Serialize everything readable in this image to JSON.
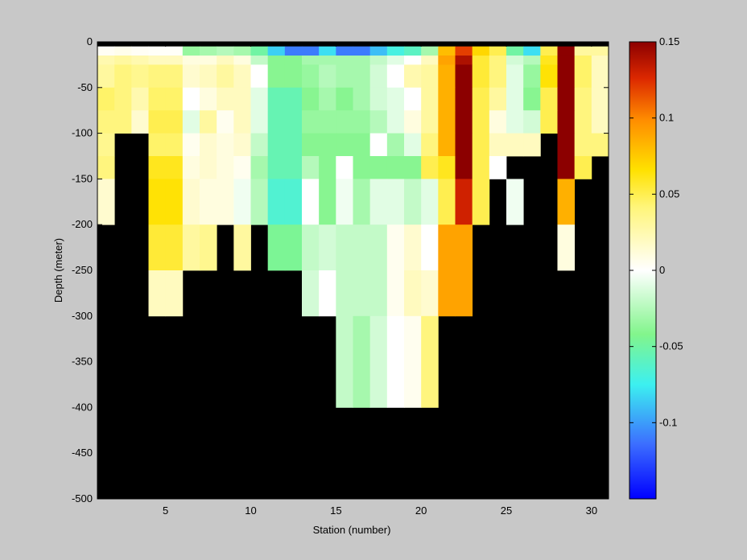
{
  "chart_data": {
    "type": "heatmap",
    "title": "",
    "xlabel": "Station (number)",
    "ylabel": "Depth (meter)",
    "xlim": [
      1,
      31
    ],
    "ylim": [
      -500,
      0
    ],
    "xticks": [
      5,
      10,
      15,
      20,
      25,
      30
    ],
    "yticks": [
      0,
      -50,
      -100,
      -150,
      -200,
      -250,
      -300,
      -350,
      -400,
      -450,
      -500
    ],
    "xtick_labels": [
      "5",
      "10",
      "15",
      "20",
      "25",
      "30"
    ],
    "ytick_labels": [
      "0",
      "-50",
      "-100",
      "-150",
      "-200",
      "-250",
      "-300",
      "-350",
      "-400",
      "-450",
      "-500"
    ],
    "colorbar": {
      "colormap": "jet-like with white at 0",
      "range": [
        -0.15,
        0.15
      ],
      "ticks": [
        0.15,
        0.1,
        0.05,
        0,
        -0.05,
        -0.1
      ],
      "tick_labels": [
        "0.15",
        "0.1",
        "0.05",
        "0",
        "-0.05",
        "-0.1"
      ]
    },
    "missing_color": "#000000",
    "station_bins": [
      1.5,
      2.5,
      3.5,
      4.5,
      5.5,
      6.5,
      7.5,
      8.5,
      9.5,
      10.5,
      11.5,
      12.5,
      13.5,
      14.5,
      15.5,
      16.5,
      17.5,
      18.5,
      19.5,
      20.5,
      21.5,
      22.5,
      23.5,
      24.5,
      25.5,
      26.5,
      27.5,
      28.5,
      29.5,
      30.5
    ],
    "depth_layers": [
      {
        "top": 0,
        "bottom": -5
      },
      {
        "top": -5,
        "bottom": -15
      },
      {
        "top": -15,
        "bottom": -25
      },
      {
        "top": -25,
        "bottom": -50
      },
      {
        "top": -50,
        "bottom": -75
      },
      {
        "top": -75,
        "bottom": -100
      },
      {
        "top": -100,
        "bottom": -125
      },
      {
        "top": -125,
        "bottom": -150
      },
      {
        "top": -150,
        "bottom": -200
      },
      {
        "top": -200,
        "bottom": -250
      },
      {
        "top": -250,
        "bottom": -300
      },
      {
        "top": -300,
        "bottom": -400
      }
    ],
    "values": [
      [
        null,
        null,
        null,
        null,
        null,
        null,
        null,
        null,
        null,
        null,
        null,
        null,
        null,
        null,
        null,
        null,
        null,
        null,
        null,
        null,
        null,
        null,
        null,
        null,
        null,
        null,
        null,
        null,
        null,
        null
      ],
      [
        0.003,
        0.006,
        0.003,
        0.002,
        0.002,
        -0.035,
        -0.03,
        -0.025,
        -0.03,
        -0.05,
        -0.085,
        -0.11,
        -0.11,
        -0.08,
        -0.11,
        -0.11,
        -0.09,
        -0.07,
        -0.06,
        -0.03,
        0.08,
        0.12,
        0.07,
        0.05,
        -0.05,
        -0.08,
        0.05,
        0.15,
        0.03,
        0.03
      ],
      [
        0.025,
        0.03,
        0.025,
        0.02,
        0.02,
        0.01,
        0.01,
        0.02,
        0.01,
        -0.02,
        -0.04,
        -0.04,
        -0.03,
        -0.03,
        -0.03,
        -0.03,
        -0.02,
        -0.01,
        0.0,
        0.02,
        0.09,
        0.14,
        0.055,
        0.04,
        -0.015,
        -0.025,
        0.06,
        0.15,
        0.045,
        0.02
      ],
      [
        0.03,
        0.04,
        0.035,
        0.04,
        0.04,
        0.015,
        0.02,
        0.03,
        0.02,
        0.0,
        -0.04,
        -0.04,
        -0.035,
        -0.025,
        -0.03,
        -0.03,
        -0.015,
        0.0,
        0.025,
        0.03,
        0.085,
        0.15,
        0.055,
        0.04,
        -0.01,
        -0.035,
        0.065,
        0.15,
        0.045,
        0.02
      ],
      [
        0.045,
        0.04,
        0.025,
        0.045,
        0.045,
        0.0,
        0.01,
        0.02,
        0.02,
        -0.01,
        -0.055,
        -0.055,
        -0.04,
        -0.03,
        -0.04,
        -0.03,
        -0.015,
        -0.01,
        0.0,
        0.03,
        0.085,
        0.15,
        0.05,
        0.03,
        -0.01,
        -0.04,
        0.05,
        0.15,
        0.04,
        0.02
      ],
      [
        0.04,
        0.04,
        0.015,
        0.05,
        0.05,
        -0.01,
        0.03,
        0.005,
        0.02,
        -0.01,
        -0.055,
        -0.055,
        -0.035,
        -0.035,
        -0.035,
        -0.035,
        -0.025,
        -0.01,
        0.01,
        0.03,
        0.085,
        0.15,
        0.05,
        0.01,
        -0.01,
        -0.015,
        0.05,
        0.15,
        0.04,
        0.02
      ],
      [
        0.035,
        null,
        null,
        0.045,
        0.045,
        0.005,
        0.015,
        0.01,
        0.015,
        -0.02,
        -0.055,
        -0.055,
        -0.04,
        -0.04,
        -0.04,
        -0.04,
        0.0,
        -0.03,
        -0.01,
        0.04,
        0.085,
        0.15,
        0.05,
        0.02,
        0.02,
        0.02,
        null,
        0.15,
        0.04,
        0.04
      ],
      [
        0.04,
        null,
        null,
        0.06,
        0.06,
        0.01,
        0.015,
        0.01,
        0.005,
        -0.03,
        -0.055,
        -0.055,
        -0.025,
        -0.04,
        0.0,
        -0.04,
        -0.04,
        -0.04,
        -0.04,
        0.05,
        0.06,
        0.15,
        0.05,
        0.0,
        null,
        null,
        null,
        0.15,
        0.05,
        null
      ],
      [
        0.015,
        null,
        null,
        0.065,
        0.065,
        0.015,
        0.01,
        0.01,
        -0.005,
        -0.025,
        -0.065,
        -0.065,
        0.0,
        -0.04,
        -0.005,
        -0.03,
        -0.01,
        -0.01,
        -0.02,
        -0.01,
        0.05,
        0.13,
        0.05,
        null,
        -0.005,
        null,
        null,
        0.085,
        null,
        null
      ],
      [
        null,
        null,
        null,
        0.055,
        0.055,
        0.03,
        0.035,
        null,
        0.03,
        null,
        -0.045,
        -0.045,
        -0.02,
        -0.015,
        -0.02,
        -0.02,
        -0.02,
        0.005,
        0.015,
        0.0,
        0.09,
        0.09,
        null,
        null,
        null,
        null,
        null,
        0.01,
        null,
        null
      ],
      [
        null,
        null,
        null,
        0.02,
        0.02,
        null,
        null,
        null,
        null,
        null,
        null,
        null,
        -0.015,
        0.0,
        -0.02,
        -0.02,
        -0.02,
        0.005,
        0.02,
        0.015,
        0.09,
        0.09,
        null,
        null,
        null,
        null,
        null,
        null,
        null,
        null
      ],
      [
        null,
        null,
        null,
        null,
        null,
        null,
        null,
        null,
        null,
        null,
        null,
        null,
        null,
        null,
        -0.02,
        -0.03,
        -0.015,
        0.0,
        0.005,
        0.04,
        null,
        null,
        null,
        null,
        null,
        null,
        null,
        null,
        null,
        null
      ]
    ]
  }
}
